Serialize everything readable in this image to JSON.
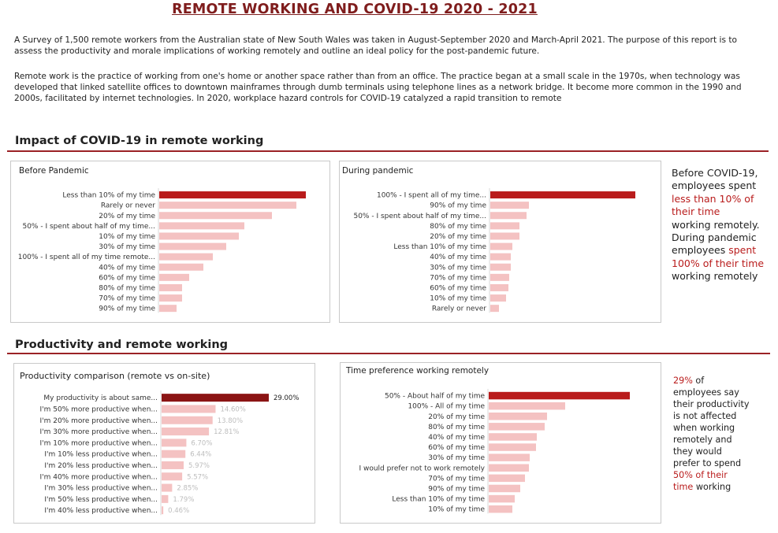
{
  "title": "REMOTE WORKING AND COVID-19 2020 - 2021",
  "intro": {
    "p1": "A Survey of 1,500 remote workers from the Australian state of New South Wales was taken in August-September 2020 and March-April 2021. The purpose of this report is to assess the productivity and morale implications of working remotely and outline an ideal policy for the post-pandemic future.",
    "p2": "Remote work is the practice of working from one's home or another space rather than from an office. The practice began at a small scale in the 1970s, when technology was developed that linked satellite offices to downtown mainframes through dumb terminals using telephone lines as a network bridge. It become more common in the 1990 and 2000s, facilitated by internet technologies. In 2020, workplace hazard controls for COVID-19 catalyzed a rapid transition to remote"
  },
  "sections": {
    "impact": "Impact of COVID-19 in remote working",
    "productivity": "Productivity and remote working"
  },
  "colors": {
    "accent": "#9b2226",
    "highlight_bar": "#b91c1c",
    "dark_bar": "#8b1414",
    "light_bar": "#f4c2c2",
    "title": "#7f1d1d"
  },
  "side_notes": {
    "impact": [
      {
        "t": "Before COVID-19,",
        "red": false
      },
      {
        "t": "employees spent",
        "red": false
      },
      {
        "t": "less than 10% of",
        "red": true
      },
      {
        "t": "their time",
        "red": true
      },
      {
        "t": "working remotely.",
        "red": false
      },
      {
        "t": "During pandemic",
        "red": false
      },
      {
        "t": "employees ",
        "red": false,
        "inline": true,
        "after": "spent",
        "after_red": true
      },
      {
        "t": "100% of their time",
        "red": true
      },
      {
        "t": "working remotely",
        "red": false
      }
    ],
    "productivity": [
      {
        "t": "29%",
        "red": true,
        "after": " of",
        "after_red": false,
        "inline": true
      },
      {
        "t": "employees say",
        "red": false
      },
      {
        "t": "their productivity",
        "red": false
      },
      {
        "t": "is not affected",
        "red": false
      },
      {
        "t": "when working",
        "red": false
      },
      {
        "t": "remotely and",
        "red": false
      },
      {
        "t": "they would",
        "red": false
      },
      {
        "t": "prefer to spend",
        "red": false
      },
      {
        "t": "50% of their",
        "red": true
      },
      {
        "t": "time",
        "red": true,
        "after": " working",
        "after_red": false,
        "inline": true
      }
    ]
  },
  "chart_data": [
    {
      "type": "bar",
      "title": "Before Pandemic",
      "orientation": "horizontal",
      "categories": [
        "Less than 10% of my time",
        "Rarely or never",
        "20% of my time",
        "50% - I spent about half of my time...",
        "10% of my time",
        "30% of my time",
        "100% - I spent all of my time remote...",
        "40% of my time",
        "60% of my time",
        "80% of my time",
        "70% of my time",
        "90% of my time"
      ],
      "values": [
        186,
        174,
        143,
        108,
        101,
        85,
        68,
        56,
        38,
        29,
        29,
        22
      ],
      "show_labels": false
    },
    {
      "type": "bar",
      "title": "During pandemic",
      "orientation": "horizontal",
      "categories": [
        "100% - I spent all of my time...",
        "90% of my time",
        "50% - I spent about half of my time...",
        "80% of my time",
        "20% of my time",
        "Less than 10% of my time",
        "40% of my time",
        "30% of my time",
        "70% of my time",
        "60% of my time",
        "10% of my time",
        "Rarely or never"
      ],
      "values": [
        184,
        49,
        46,
        37,
        37,
        28,
        26,
        26,
        24,
        23,
        20,
        11
      ],
      "show_labels": false
    },
    {
      "type": "bar",
      "title": "Productivity comparison (remote vs on-site)",
      "orientation": "horizontal",
      "categories": [
        "My productivity is about same...",
        "I'm 50% more productive when...",
        "I'm 20% more productive when...",
        "I'm 30% more productive when...",
        "I'm 10% more productive when...",
        "I'm 10% less productive when...",
        "I'm 20% less productive when...",
        "I'm 40% more productive when...",
        "I'm 30% less productive when...",
        "I'm 50% less productive when...",
        "I'm 40% less productive when..."
      ],
      "values": [
        29.0,
        14.6,
        13.8,
        12.81,
        6.7,
        6.44,
        5.97,
        5.57,
        2.85,
        1.79,
        0.46
      ],
      "labels": [
        "29.00%",
        "14.60%",
        "13.80%",
        "12.81%",
        "6.70%",
        "6.44%",
        "5.97%",
        "5.57%",
        "2.85%",
        "1.79%",
        "0.46%"
      ],
      "show_labels": true
    },
    {
      "type": "bar",
      "title": "Time preference working remotely",
      "orientation": "horizontal",
      "categories": [
        "50% - About half of my time",
        "100% - All of my time",
        "20% of my time",
        "80% of my time",
        "40% of my time",
        "60% of my time",
        "30% of my time",
        "I would prefer not to work remotely",
        "70% of my time",
        "90% of my time",
        "Less than 10% of my time",
        "10% of my time"
      ],
      "values": [
        179,
        97,
        74,
        71,
        61,
        60,
        52,
        51,
        46,
        40,
        33,
        30
      ],
      "show_labels": false
    }
  ]
}
